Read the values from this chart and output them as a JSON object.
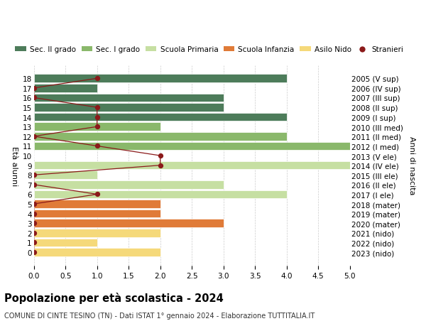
{
  "ages": [
    18,
    17,
    16,
    15,
    14,
    13,
    12,
    11,
    10,
    9,
    8,
    7,
    6,
    5,
    4,
    3,
    2,
    1,
    0
  ],
  "years": [
    "2005 (V sup)",
    "2006 (IV sup)",
    "2007 (III sup)",
    "2008 (II sup)",
    "2009 (I sup)",
    "2010 (III med)",
    "2011 (II med)",
    "2012 (I med)",
    "2013 (V ele)",
    "2014 (IV ele)",
    "2015 (III ele)",
    "2016 (II ele)",
    "2017 (I ele)",
    "2018 (mater)",
    "2019 (mater)",
    "2020 (mater)",
    "2021 (nido)",
    "2022 (nido)",
    "2023 (nido)"
  ],
  "bar_values": [
    4,
    1,
    3,
    3,
    4,
    2,
    4,
    5,
    0,
    5,
    1,
    3,
    4,
    2,
    2,
    3,
    2,
    1,
    2
  ],
  "bar_colors": [
    "#4d7c5a",
    "#4d7c5a",
    "#4d7c5a",
    "#4d7c5a",
    "#4d7c5a",
    "#8ab86b",
    "#8ab86b",
    "#8ab86b",
    "#c6dfa2",
    "#c6dfa2",
    "#c6dfa2",
    "#c6dfa2",
    "#c6dfa2",
    "#e07b38",
    "#e07b38",
    "#e07b38",
    "#f5d97a",
    "#f5d97a",
    "#f5d97a"
  ],
  "stranieri_x": [
    1,
    0,
    0,
    1,
    1,
    1,
    0,
    1,
    2,
    2,
    0,
    0,
    1,
    0,
    0,
    0,
    0,
    0,
    0
  ],
  "title": "Popolazione per età scolastica - 2024",
  "subtitle": "COMUNE DI CINTE TESINO (TN) - Dati ISTAT 1° gennaio 2024 - Elaborazione TUTTITALIA.IT",
  "ylabel_left": "Età alunni",
  "ylabel_right": "Anni di nascita",
  "xlim": [
    0,
    5.0
  ],
  "xticks": [
    0,
    0.5,
    1.0,
    1.5,
    2.0,
    2.5,
    3.0,
    3.5,
    4.0,
    4.5,
    5.0
  ],
  "background_color": "#ffffff",
  "grid_color": "#cccccc",
  "stranieri_color": "#8b1a1a",
  "legend_items": [
    {
      "label": "Sec. II grado",
      "color": "#4d7c5a",
      "type": "patch"
    },
    {
      "label": "Sec. I grado",
      "color": "#8ab86b",
      "type": "patch"
    },
    {
      "label": "Scuola Primaria",
      "color": "#c6dfa2",
      "type": "patch"
    },
    {
      "label": "Scuola Infanzia",
      "color": "#e07b38",
      "type": "patch"
    },
    {
      "label": "Asilo Nido",
      "color": "#f5d97a",
      "type": "patch"
    },
    {
      "label": "Stranieri",
      "color": "#8b1a1a",
      "type": "dot"
    }
  ]
}
